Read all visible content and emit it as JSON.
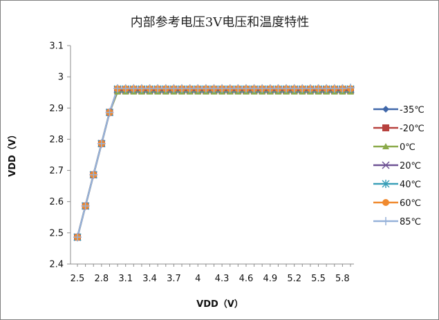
{
  "chart_data": {
    "type": "line",
    "title": "内部参考电压3V电压和温度特性",
    "xlabel": "VDD（V）",
    "ylabel": "VDD（V）",
    "x": [
      2.5,
      2.6,
      2.7,
      2.8,
      2.9,
      3.0,
      3.1,
      3.2,
      3.3,
      3.4,
      3.5,
      3.6,
      3.7,
      3.8,
      3.9,
      4.0,
      4.1,
      4.2,
      4.3,
      4.4,
      4.5,
      4.6,
      4.7,
      4.8,
      4.9,
      5.0,
      5.1,
      5.2,
      5.3,
      5.4,
      5.5,
      5.6,
      5.7,
      5.8,
      5.9
    ],
    "x_tick_labels": [
      "2.5",
      "2.8",
      "3.1",
      "3.4",
      "3.7",
      "4",
      "4.3",
      "4.6",
      "4.9",
      "5.2",
      "5.5",
      "5.8"
    ],
    "ylim": [
      2.4,
      3.1
    ],
    "y_ticks": [
      "2.4",
      "2.5",
      "2.6",
      "2.7",
      "2.8",
      "2.9",
      "3",
      "3.1"
    ],
    "grid": false,
    "legend_position": "right",
    "series": [
      {
        "name": "-35℃",
        "color": "#3F67A9",
        "marker": "diamond",
        "values": [
          2.486,
          2.586,
          2.686,
          2.786,
          2.886,
          2.956,
          2.956,
          2.956,
          2.956,
          2.956,
          2.956,
          2.956,
          2.956,
          2.956,
          2.956,
          2.956,
          2.956,
          2.956,
          2.956,
          2.956,
          2.956,
          2.956,
          2.956,
          2.956,
          2.956,
          2.956,
          2.956,
          2.956,
          2.956,
          2.956,
          2.956,
          2.956,
          2.956,
          2.956,
          2.956
        ]
      },
      {
        "name": "-20℃",
        "color": "#B7413E",
        "marker": "square",
        "values": [
          2.486,
          2.586,
          2.686,
          2.786,
          2.886,
          2.957,
          2.957,
          2.957,
          2.957,
          2.957,
          2.957,
          2.957,
          2.957,
          2.957,
          2.957,
          2.957,
          2.957,
          2.957,
          2.957,
          2.957,
          2.957,
          2.957,
          2.957,
          2.957,
          2.957,
          2.957,
          2.957,
          2.957,
          2.957,
          2.957,
          2.957,
          2.957,
          2.957,
          2.957,
          2.957
        ]
      },
      {
        "name": "0℃",
        "color": "#8BAA4A",
        "marker": "triangle",
        "values": [
          2.486,
          2.586,
          2.686,
          2.786,
          2.886,
          2.952,
          2.952,
          2.952,
          2.952,
          2.952,
          2.952,
          2.952,
          2.952,
          2.952,
          2.952,
          2.952,
          2.952,
          2.952,
          2.952,
          2.952,
          2.952,
          2.952,
          2.952,
          2.952,
          2.952,
          2.952,
          2.952,
          2.952,
          2.952,
          2.952,
          2.952,
          2.952,
          2.952,
          2.952,
          2.952
        ]
      },
      {
        "name": "20℃",
        "color": "#6E5294",
        "marker": "x",
        "values": [
          2.486,
          2.586,
          2.686,
          2.786,
          2.886,
          2.959,
          2.959,
          2.959,
          2.959,
          2.959,
          2.959,
          2.959,
          2.959,
          2.959,
          2.959,
          2.959,
          2.959,
          2.959,
          2.959,
          2.959,
          2.959,
          2.959,
          2.959,
          2.959,
          2.959,
          2.959,
          2.959,
          2.959,
          2.959,
          2.959,
          2.959,
          2.959,
          2.959,
          2.959,
          2.959
        ]
      },
      {
        "name": "40℃",
        "color": "#3A9FB8",
        "marker": "star",
        "values": [
          2.486,
          2.586,
          2.686,
          2.786,
          2.886,
          2.961,
          2.961,
          2.961,
          2.961,
          2.961,
          2.961,
          2.961,
          2.961,
          2.961,
          2.961,
          2.961,
          2.961,
          2.961,
          2.961,
          2.961,
          2.961,
          2.961,
          2.961,
          2.961,
          2.961,
          2.961,
          2.961,
          2.961,
          2.961,
          2.961,
          2.961,
          2.961,
          2.961,
          2.961,
          2.961
        ]
      },
      {
        "name": "60℃",
        "color": "#F08A2F",
        "marker": "circle",
        "values": [
          2.486,
          2.586,
          2.686,
          2.786,
          2.886,
          2.962,
          2.962,
          2.962,
          2.962,
          2.962,
          2.962,
          2.962,
          2.962,
          2.962,
          2.962,
          2.962,
          2.962,
          2.962,
          2.962,
          2.962,
          2.962,
          2.962,
          2.962,
          2.962,
          2.962,
          2.962,
          2.962,
          2.962,
          2.962,
          2.962,
          2.962,
          2.962,
          2.962,
          2.962,
          2.962
        ]
      },
      {
        "name": "85℃",
        "color": "#95B1D9",
        "marker": "plus",
        "values": [
          2.486,
          2.586,
          2.686,
          2.786,
          2.886,
          2.963,
          2.963,
          2.963,
          2.963,
          2.963,
          2.963,
          2.963,
          2.963,
          2.963,
          2.963,
          2.963,
          2.963,
          2.963,
          2.963,
          2.963,
          2.963,
          2.963,
          2.963,
          2.963,
          2.963,
          2.963,
          2.963,
          2.963,
          2.963,
          2.963,
          2.963,
          2.963,
          2.963,
          2.963,
          2.965
        ]
      }
    ]
  }
}
